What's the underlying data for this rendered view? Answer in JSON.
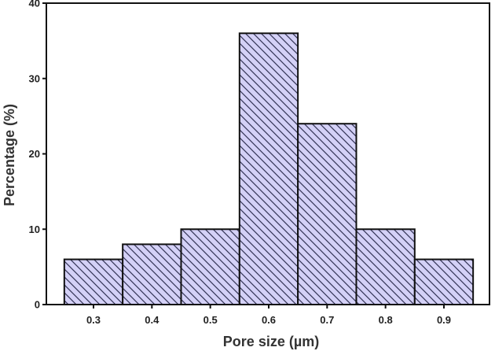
{
  "chart_data": {
    "type": "bar",
    "categories": [
      "0.3",
      "0.4",
      "0.5",
      "0.6",
      "0.7",
      "0.8",
      "0.9"
    ],
    "values": [
      6,
      8,
      10,
      36,
      24,
      10,
      6
    ],
    "title": "",
    "xlabel": "Pore size (µm)",
    "ylabel": "Percentage (%)",
    "ylim": [
      0,
      40
    ],
    "yticks": [
      "0",
      "10",
      "20",
      "30",
      "40"
    ],
    "grid": false,
    "bar_fill": "#d4d1f7",
    "bar_stroke": "#111111",
    "hatch": "diagonal"
  }
}
